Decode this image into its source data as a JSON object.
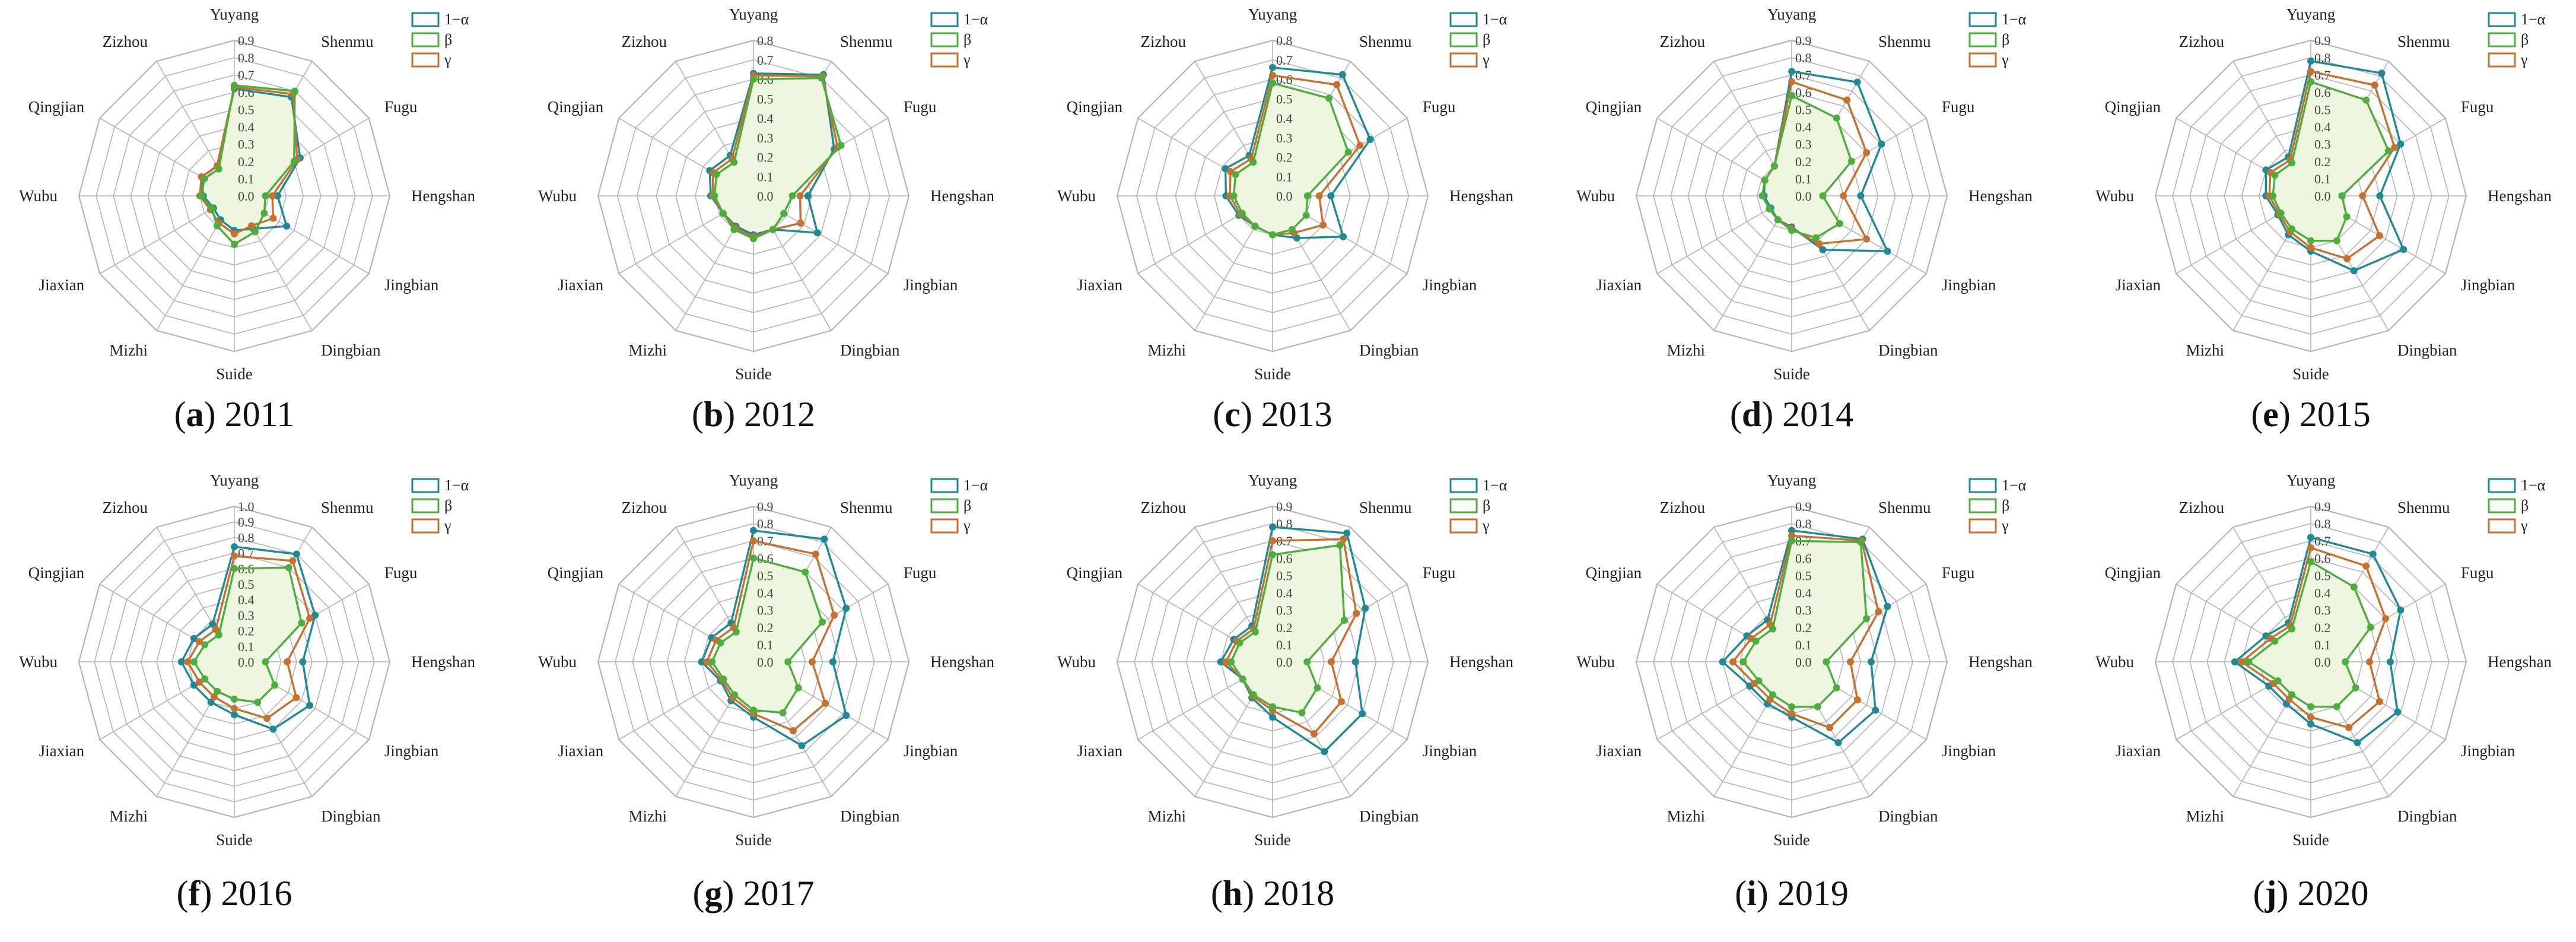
{
  "figure": {
    "axis_labels": [
      "Yuyang",
      "Shenmu",
      "Fugu",
      "Hengshan",
      "Jingbian",
      "Dingbian",
      "Suide",
      "Mizhi",
      "Jiaxian",
      "Wubu",
      "Qingjian",
      "Zizhou"
    ],
    "legend": [
      "1−α",
      "β",
      "γ"
    ],
    "colors": {
      "1−α": "#1f8a93",
      "β": "#4caf3c",
      "γ": "#c8702e",
      "grid": "#b5b5b5",
      "fill_core": "#eef6df",
      "text": "#222222"
    }
  },
  "chart_data": [
    {
      "type": "radar",
      "caption_letter": "a",
      "caption_year": "2011",
      "axis_labels": [
        "Yuyang",
        "Shenmu",
        "Fugu",
        "Hengshan",
        "Jingbian",
        "Dingbian",
        "Suide",
        "Mizhi",
        "Jiaxian",
        "Wubu",
        "Qingjian",
        "Zizhou"
      ],
      "rmax": 0.9,
      "ticks": [
        "0.9",
        "0.8",
        "0.7",
        "0.6",
        "0.5",
        "0.4",
        "0.3",
        "0.2",
        "0.1",
        "0.0"
      ],
      "series": [
        {
          "name": "1−α",
          "values": [
            0.62,
            0.66,
            0.44,
            0.25,
            0.35,
            0.22,
            0.2,
            0.16,
            0.14,
            0.18,
            0.22,
            0.2
          ]
        },
        {
          "name": "β",
          "values": [
            0.64,
            0.7,
            0.4,
            0.18,
            0.2,
            0.24,
            0.28,
            0.2,
            0.15,
            0.19,
            0.2,
            0.18
          ]
        },
        {
          "name": "γ",
          "values": [
            0.63,
            0.68,
            0.42,
            0.22,
            0.26,
            0.2,
            0.22,
            0.18,
            0.16,
            0.2,
            0.22,
            0.2
          ]
        }
      ]
    },
    {
      "type": "radar",
      "caption_letter": "b",
      "caption_year": "2012",
      "axis_labels": [
        "Yuyang",
        "Shenmu",
        "Fugu",
        "Hengshan",
        "Jingbian",
        "Dingbian",
        "Suide",
        "Mizhi",
        "Jiaxian",
        "Wubu",
        "Qingjian",
        "Zizhou"
      ],
      "rmax": 0.8,
      "ticks": [
        "0.8",
        "0.7",
        "0.6",
        "0.5",
        "0.4",
        "0.3",
        "0.2",
        "0.1",
        "0.0"
      ],
      "series": [
        {
          "name": "1−α",
          "values": [
            0.63,
            0.72,
            0.48,
            0.28,
            0.38,
            0.2,
            0.2,
            0.18,
            0.18,
            0.22,
            0.26,
            0.24
          ]
        },
        {
          "name": "β",
          "values": [
            0.6,
            0.7,
            0.52,
            0.2,
            0.18,
            0.2,
            0.22,
            0.2,
            0.18,
            0.2,
            0.22,
            0.2
          ]
        },
        {
          "name": "γ",
          "values": [
            0.62,
            0.71,
            0.5,
            0.24,
            0.28,
            0.2,
            0.21,
            0.19,
            0.18,
            0.21,
            0.24,
            0.22
          ]
        }
      ]
    },
    {
      "type": "radar",
      "caption_letter": "c",
      "caption_year": "2013",
      "axis_labels": [
        "Yuyang",
        "Shenmu",
        "Fugu",
        "Hengshan",
        "Jingbian",
        "Dingbian",
        "Suide",
        "Mizhi",
        "Jiaxian",
        "Wubu",
        "Qingjian",
        "Zizhou"
      ],
      "rmax": 0.8,
      "ticks": [
        "0.8",
        "0.7",
        "0.6",
        "0.5",
        "0.4",
        "0.3",
        "0.2",
        "0.1",
        "0.0"
      ],
      "series": [
        {
          "name": "1−α",
          "values": [
            0.66,
            0.72,
            0.58,
            0.3,
            0.42,
            0.25,
            0.2,
            0.18,
            0.2,
            0.24,
            0.28,
            0.24
          ]
        },
        {
          "name": "β",
          "values": [
            0.58,
            0.58,
            0.45,
            0.18,
            0.2,
            0.2,
            0.2,
            0.18,
            0.18,
            0.2,
            0.22,
            0.2
          ]
        },
        {
          "name": "γ",
          "values": [
            0.62,
            0.66,
            0.52,
            0.24,
            0.3,
            0.22,
            0.2,
            0.18,
            0.19,
            0.22,
            0.25,
            0.22
          ]
        }
      ]
    },
    {
      "type": "radar",
      "caption_letter": "d",
      "caption_year": "2014",
      "axis_labels": [
        "Yuyang",
        "Shenmu",
        "Fugu",
        "Hengshan",
        "Jingbian",
        "Dingbian",
        "Suide",
        "Mizhi",
        "Jiaxian",
        "Wubu",
        "Qingjian",
        "Zizhou"
      ],
      "rmax": 0.9,
      "ticks": [
        "0.9",
        "0.8",
        "0.7",
        "0.6",
        "0.5",
        "0.4",
        "0.3",
        "0.2",
        "0.1",
        "0.0"
      ],
      "series": [
        {
          "name": "1−α",
          "values": [
            0.72,
            0.76,
            0.6,
            0.4,
            0.64,
            0.36,
            0.18,
            0.16,
            0.14,
            0.16,
            0.18,
            0.2
          ]
        },
        {
          "name": "β",
          "values": [
            0.58,
            0.52,
            0.4,
            0.18,
            0.32,
            0.28,
            0.2,
            0.16,
            0.15,
            0.17,
            0.18,
            0.2
          ]
        },
        {
          "name": "γ",
          "values": [
            0.66,
            0.64,
            0.5,
            0.3,
            0.5,
            0.32,
            0.19,
            0.16,
            0.15,
            0.17,
            0.18,
            0.2
          ]
        }
      ]
    },
    {
      "type": "radar",
      "caption_letter": "e",
      "caption_year": "2015",
      "axis_labels": [
        "Yuyang",
        "Shenmu",
        "Fugu",
        "Hengshan",
        "Jingbian",
        "Dingbian",
        "Suide",
        "Mizhi",
        "Jiaxian",
        "Wubu",
        "Qingjian",
        "Zizhou"
      ],
      "rmax": 0.9,
      "ticks": [
        "0.9",
        "0.8",
        "0.7",
        "0.6",
        "0.5",
        "0.4",
        "0.3",
        "0.2",
        "0.1",
        "0.0"
      ],
      "series": [
        {
          "name": "1−α",
          "values": [
            0.78,
            0.82,
            0.6,
            0.4,
            0.62,
            0.5,
            0.32,
            0.26,
            0.22,
            0.26,
            0.3,
            0.26
          ]
        },
        {
          "name": "β",
          "values": [
            0.66,
            0.64,
            0.52,
            0.18,
            0.24,
            0.3,
            0.26,
            0.22,
            0.2,
            0.22,
            0.24,
            0.22
          ]
        },
        {
          "name": "γ",
          "values": [
            0.72,
            0.74,
            0.56,
            0.3,
            0.46,
            0.42,
            0.3,
            0.24,
            0.21,
            0.24,
            0.27,
            0.24
          ]
        }
      ]
    },
    {
      "type": "radar",
      "caption_letter": "f",
      "caption_year": "2016",
      "axis_labels": [
        "Yuyang",
        "Shenmu",
        "Fugu",
        "Hengshan",
        "Jingbian",
        "Dingbian",
        "Suide",
        "Mizhi",
        "Jiaxian",
        "Wubu",
        "Qingjian",
        "Zizhou"
      ],
      "rmax": 1.0,
      "ticks": [
        "1.0",
        "0.9",
        "0.8",
        "0.7",
        "0.6",
        "0.5",
        "0.4",
        "0.3",
        "0.2",
        "0.1",
        "0.0"
      ],
      "series": [
        {
          "name": "1−α",
          "values": [
            0.74,
            0.8,
            0.6,
            0.44,
            0.56,
            0.5,
            0.34,
            0.3,
            0.3,
            0.34,
            0.3,
            0.28
          ]
        },
        {
          "name": "β",
          "values": [
            0.6,
            0.7,
            0.5,
            0.2,
            0.3,
            0.3,
            0.24,
            0.22,
            0.22,
            0.26,
            0.22,
            0.2
          ]
        },
        {
          "name": "γ",
          "values": [
            0.68,
            0.75,
            0.56,
            0.34,
            0.46,
            0.42,
            0.3,
            0.26,
            0.26,
            0.3,
            0.26,
            0.24
          ]
        }
      ]
    },
    {
      "type": "radar",
      "caption_letter": "g",
      "caption_year": "2017",
      "axis_labels": [
        "Yuyang",
        "Shenmu",
        "Fugu",
        "Hengshan",
        "Jingbian",
        "Dingbian",
        "Suide",
        "Mizhi",
        "Jiaxian",
        "Wubu",
        "Qingjian",
        "Zizhou"
      ],
      "rmax": 0.9,
      "ticks": [
        "0.9",
        "0.8",
        "0.7",
        "0.6",
        "0.5",
        "0.4",
        "0.3",
        "0.2",
        "0.1",
        "0.0"
      ],
      "series": [
        {
          "name": "1−α",
          "values": [
            0.76,
            0.82,
            0.62,
            0.46,
            0.62,
            0.56,
            0.32,
            0.26,
            0.22,
            0.3,
            0.28,
            0.26
          ]
        },
        {
          "name": "β",
          "values": [
            0.6,
            0.6,
            0.46,
            0.2,
            0.3,
            0.34,
            0.28,
            0.22,
            0.2,
            0.24,
            0.22,
            0.2
          ]
        },
        {
          "name": "γ",
          "values": [
            0.7,
            0.72,
            0.54,
            0.34,
            0.48,
            0.46,
            0.3,
            0.24,
            0.21,
            0.27,
            0.25,
            0.23
          ]
        }
      ]
    },
    {
      "type": "radar",
      "caption_letter": "h",
      "caption_year": "2018",
      "axis_labels": [
        "Yuyang",
        "Shenmu",
        "Fugu",
        "Hengshan",
        "Jingbian",
        "Dingbian",
        "Suide",
        "Mizhi",
        "Jiaxian",
        "Wubu",
        "Qingjian",
        "Zizhou"
      ],
      "rmax": 0.9,
      "ticks": [
        "0.9",
        "0.8",
        "0.7",
        "0.6",
        "0.5",
        "0.4",
        "0.3",
        "0.2",
        "0.1",
        "0.0"
      ],
      "series": [
        {
          "name": "1−α",
          "values": [
            0.78,
            0.86,
            0.62,
            0.48,
            0.6,
            0.6,
            0.32,
            0.24,
            0.2,
            0.3,
            0.26,
            0.24
          ]
        },
        {
          "name": "β",
          "values": [
            0.62,
            0.78,
            0.48,
            0.2,
            0.3,
            0.34,
            0.26,
            0.22,
            0.2,
            0.24,
            0.22,
            0.2
          ]
        },
        {
          "name": "γ",
          "values": [
            0.7,
            0.82,
            0.56,
            0.34,
            0.46,
            0.48,
            0.28,
            0.23,
            0.2,
            0.27,
            0.24,
            0.22
          ]
        }
      ]
    },
    {
      "type": "radar",
      "caption_letter": "i",
      "caption_year": "2019",
      "axis_labels": [
        "Yuyang",
        "Shenmu",
        "Fugu",
        "Hengshan",
        "Jingbian",
        "Dingbian",
        "Suide",
        "Mizhi",
        "Jiaxian",
        "Wubu",
        "Qingjian",
        "Zizhou"
      ],
      "rmax": 0.9,
      "ticks": [
        "0.9",
        "0.8",
        "0.7",
        "0.6",
        "0.5",
        "0.4",
        "0.3",
        "0.2",
        "0.1",
        "0.0"
      ],
      "series": [
        {
          "name": "1−α",
          "values": [
            0.76,
            0.82,
            0.64,
            0.46,
            0.56,
            0.54,
            0.32,
            0.28,
            0.28,
            0.4,
            0.3,
            0.28
          ]
        },
        {
          "name": "β",
          "values": [
            0.7,
            0.8,
            0.5,
            0.2,
            0.3,
            0.3,
            0.26,
            0.22,
            0.22,
            0.28,
            0.24,
            0.22
          ]
        },
        {
          "name": "γ",
          "values": [
            0.73,
            0.81,
            0.58,
            0.34,
            0.44,
            0.44,
            0.3,
            0.25,
            0.25,
            0.34,
            0.27,
            0.25
          ]
        }
      ]
    },
    {
      "type": "radar",
      "caption_letter": "j",
      "caption_year": "2020",
      "axis_labels": [
        "Yuyang",
        "Shenmu",
        "Fugu",
        "Hengshan",
        "Jingbian",
        "Dingbian",
        "Suide",
        "Mizhi",
        "Jiaxian",
        "Wubu",
        "Qingjian",
        "Zizhou"
      ],
      "rmax": 0.9,
      "ticks": [
        "0.9",
        "0.8",
        "0.7",
        "0.6",
        "0.5",
        "0.4",
        "0.3",
        "0.2",
        "0.1",
        "0.0"
      ],
      "series": [
        {
          "name": "1−α",
          "values": [
            0.72,
            0.72,
            0.6,
            0.46,
            0.58,
            0.54,
            0.36,
            0.28,
            0.28,
            0.44,
            0.3,
            0.26
          ]
        },
        {
          "name": "β",
          "values": [
            0.58,
            0.5,
            0.4,
            0.2,
            0.3,
            0.3,
            0.26,
            0.22,
            0.22,
            0.36,
            0.24,
            0.22
          ]
        },
        {
          "name": "γ",
          "values": [
            0.66,
            0.64,
            0.5,
            0.34,
            0.46,
            0.44,
            0.32,
            0.25,
            0.25,
            0.4,
            0.27,
            0.24
          ]
        }
      ]
    }
  ]
}
